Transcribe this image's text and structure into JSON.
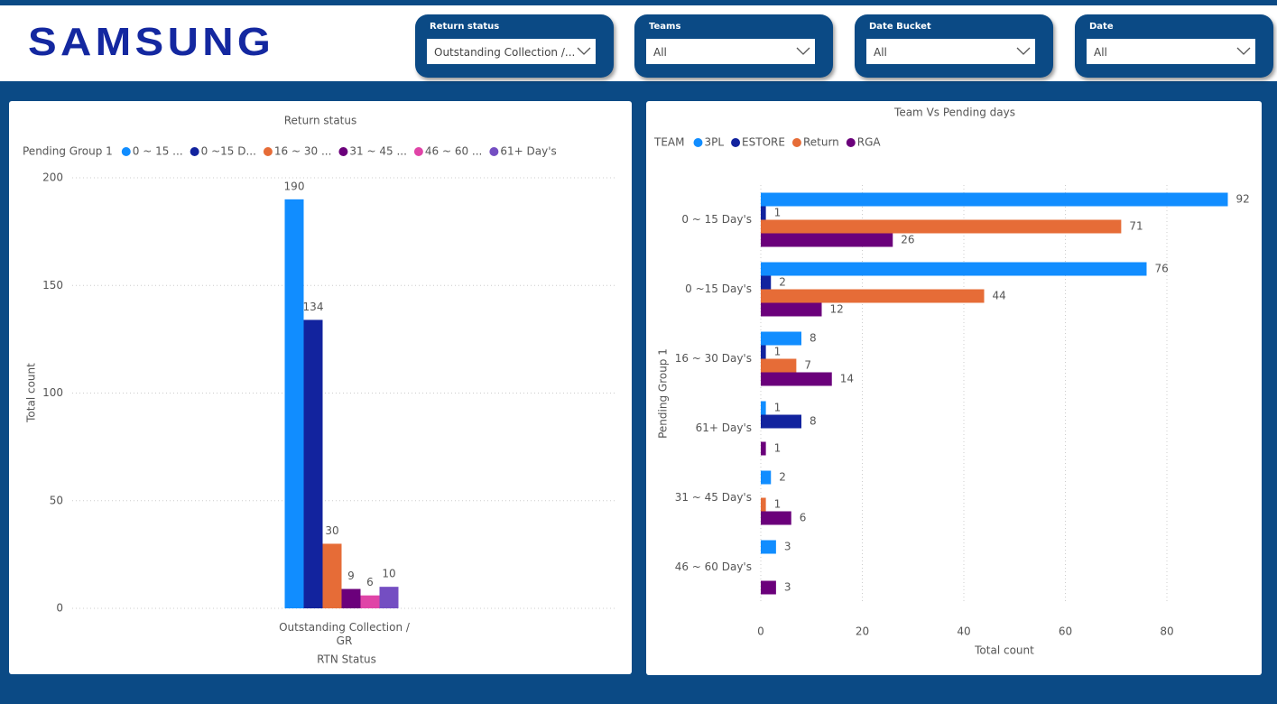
{
  "header": {
    "logo": "SAMSUNG",
    "filters": [
      {
        "label": "Return status",
        "value": "Outstanding Collection /..."
      },
      {
        "label": "Teams",
        "value": "All"
      },
      {
        "label": "Date Bucket",
        "value": "All"
      },
      {
        "label": "Date",
        "value": "All"
      }
    ]
  },
  "chart_data": [
    {
      "type": "bar",
      "title": "Return status",
      "legend_title": "Pending Group 1",
      "categories": [
        "Outstanding Collection / GR"
      ],
      "series": [
        {
          "name": "0 ~ 15 ...",
          "color": "#118DFF",
          "values": [
            190
          ]
        },
        {
          "name": "0 ~15 D...",
          "color": "#12239E",
          "values": [
            134
          ]
        },
        {
          "name": "16 ~ 30 ...",
          "color": "#E66C37",
          "values": [
            30
          ]
        },
        {
          "name": "31 ~ 45 ...",
          "color": "#6B007B",
          "values": [
            9
          ]
        },
        {
          "name": "46 ~ 60 ...",
          "color": "#E044A7",
          "values": [
            6
          ]
        },
        {
          "name": "61+ Day's",
          "color": "#744EC2",
          "values": [
            10
          ]
        }
      ],
      "xlabel": "RTN Status",
      "ylabel": "Total count",
      "ylim": [
        0,
        200
      ],
      "yticks": [
        0,
        50,
        100,
        150,
        200
      ],
      "grid": true
    },
    {
      "type": "hbar",
      "title": "Team Vs Pending days",
      "legend_title": "TEAM",
      "categories": [
        "0 ~ 15 Day's",
        "0 ~15 Day's",
        "16 ~ 30 Day's",
        "61+ Day's",
        "31 ~ 45 Day's",
        "46 ~ 60 Day's"
      ],
      "series": [
        {
          "name": "3PL",
          "color": "#118DFF",
          "values": [
            92,
            76,
            8,
            1,
            2,
            3
          ]
        },
        {
          "name": "ESTORE",
          "color": "#12239E",
          "values": [
            1,
            2,
            1,
            8,
            null,
            null
          ]
        },
        {
          "name": "Return",
          "color": "#E66C37",
          "values": [
            71,
            44,
            7,
            null,
            1,
            null
          ]
        },
        {
          "name": "RGA",
          "color": "#6B007B",
          "values": [
            26,
            12,
            14,
            1,
            6,
            3
          ]
        }
      ],
      "xlabel": "Total count",
      "ylabel": "Pending Group 1",
      "xlim": [
        0,
        97
      ],
      "xticks": [
        0,
        20,
        40,
        60,
        80
      ],
      "grid": true
    }
  ]
}
